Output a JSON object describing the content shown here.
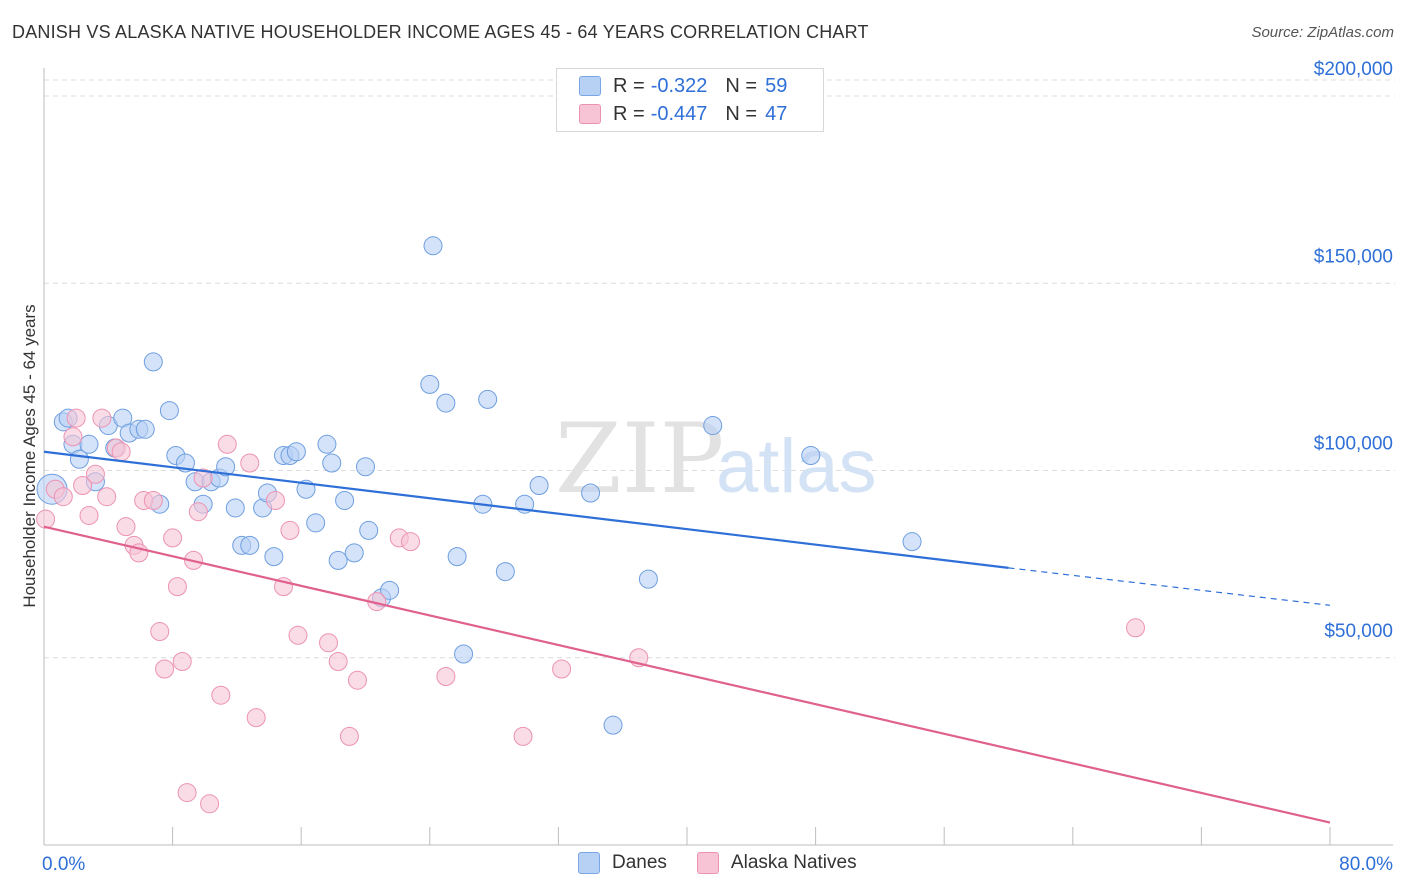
{
  "title": "DANISH VS ALASKA NATIVE HOUSEHOLDER INCOME AGES 45 - 64 YEARS CORRELATION CHART",
  "source": "Source: ZipAtlas.com",
  "watermark": {
    "zip": "ZIP",
    "atlas": "atlas"
  },
  "legend": {
    "rows": [
      {
        "r_label": "R =",
        "r_value": "-0.322",
        "n_label": "N =",
        "n_value": "59",
        "color": "#b7d1f5",
        "border": "#7aa6e6"
      },
      {
        "r_label": "R =",
        "r_value": "-0.447",
        "n_label": "N =",
        "n_value": "47",
        "color": "#f7c4d5",
        "border": "#ec93b3"
      }
    ],
    "bottom": [
      {
        "label": "Danes",
        "color": "#b7d1f5",
        "border": "#7aa6e6"
      },
      {
        "label": "Alaska Natives",
        "color": "#f7c4d5",
        "border": "#ec93b3"
      }
    ]
  },
  "chart_data": {
    "type": "scatter",
    "title": "DANISH VS ALASKA NATIVE HOUSEHOLDER INCOME AGES 45 - 64 YEARS CORRELATION CHART",
    "xlabel": "",
    "ylabel": "Householder Income Ages 45 - 64 years",
    "xlim": [
      0,
      80
    ],
    "ylim": [
      0,
      200000
    ],
    "x_tick_labels": [
      "0.0%",
      "80.0%"
    ],
    "y_ticks": [
      50000,
      100000,
      150000,
      200000
    ],
    "y_tick_labels": [
      "$50,000",
      "$100,000",
      "$150,000",
      "$200,000"
    ],
    "grid": "horizontal dashed",
    "legend_position": "top-center",
    "series": [
      {
        "name": "Danes",
        "color": "#6f9fe0",
        "fill": "#b7d1f5",
        "trend": {
          "x0": 0,
          "y0": 105000,
          "x1": 60,
          "y1": 74000,
          "dashed_to_x": 80,
          "dashed_to_y": 64000,
          "color": "#2e6fd8"
        },
        "points": [
          [
            0.5,
            95000
          ],
          [
            1.2,
            113000
          ],
          [
            1.5,
            114000
          ],
          [
            1.8,
            107000
          ],
          [
            2.2,
            103000
          ],
          [
            2.8,
            107000
          ],
          [
            3.2,
            97000
          ],
          [
            4.0,
            112000
          ],
          [
            4.4,
            106000
          ],
          [
            4.9,
            114000
          ],
          [
            5.3,
            110000
          ],
          [
            5.9,
            111000
          ],
          [
            6.3,
            111000
          ],
          [
            6.8,
            129000
          ],
          [
            7.2,
            91000
          ],
          [
            7.8,
            116000
          ],
          [
            8.2,
            104000
          ],
          [
            8.8,
            102000
          ],
          [
            9.4,
            97000
          ],
          [
            9.9,
            91000
          ],
          [
            10.4,
            97000
          ],
          [
            10.9,
            98000
          ],
          [
            11.3,
            101000
          ],
          [
            11.9,
            90000
          ],
          [
            12.3,
            80000
          ],
          [
            12.8,
            80000
          ],
          [
            13.6,
            90000
          ],
          [
            13.9,
            94000
          ],
          [
            14.3,
            77000
          ],
          [
            14.9,
            104000
          ],
          [
            15.3,
            104000
          ],
          [
            15.7,
            105000
          ],
          [
            16.3,
            95000
          ],
          [
            16.9,
            86000
          ],
          [
            17.6,
            107000
          ],
          [
            17.9,
            102000
          ],
          [
            18.3,
            76000
          ],
          [
            18.7,
            92000
          ],
          [
            19.3,
            78000
          ],
          [
            20.0,
            101000
          ],
          [
            20.2,
            84000
          ],
          [
            21.0,
            66000
          ],
          [
            21.5,
            68000
          ],
          [
            24.0,
            123000
          ],
          [
            24.2,
            160000
          ],
          [
            25.0,
            118000
          ],
          [
            25.7,
            77000
          ],
          [
            26.1,
            51000
          ],
          [
            27.3,
            91000
          ],
          [
            27.6,
            119000
          ],
          [
            28.7,
            73000
          ],
          [
            29.9,
            91000
          ],
          [
            30.8,
            96000
          ],
          [
            34.0,
            94000
          ],
          [
            35.4,
            32000
          ],
          [
            37.6,
            71000
          ],
          [
            41.6,
            112000
          ],
          [
            47.7,
            104000
          ],
          [
            54.0,
            81000
          ]
        ]
      },
      {
        "name": "Alaska Natives",
        "color": "#ec93b3",
        "fill": "#f7c4d5",
        "trend": {
          "x0": 0,
          "y0": 85000,
          "x1": 80,
          "y1": 6000,
          "color": "#e0608e"
        },
        "points": [
          [
            0.1,
            87000
          ],
          [
            0.7,
            95000
          ],
          [
            1.2,
            93000
          ],
          [
            1.8,
            109000
          ],
          [
            2.0,
            114000
          ],
          [
            2.4,
            96000
          ],
          [
            2.8,
            88000
          ],
          [
            3.2,
            99000
          ],
          [
            3.6,
            114000
          ],
          [
            3.9,
            93000
          ],
          [
            4.5,
            106000
          ],
          [
            4.8,
            105000
          ],
          [
            5.1,
            85000
          ],
          [
            5.6,
            80000
          ],
          [
            5.9,
            78000
          ],
          [
            6.2,
            92000
          ],
          [
            6.8,
            92000
          ],
          [
            7.2,
            57000
          ],
          [
            7.5,
            47000
          ],
          [
            8.0,
            82000
          ],
          [
            8.3,
            69000
          ],
          [
            8.6,
            49000
          ],
          [
            8.9,
            14000
          ],
          [
            9.3,
            76000
          ],
          [
            9.6,
            89000
          ],
          [
            9.9,
            98000
          ],
          [
            10.3,
            11000
          ],
          [
            11.0,
            40000
          ],
          [
            11.4,
            107000
          ],
          [
            12.8,
            102000
          ],
          [
            13.2,
            34000
          ],
          [
            14.4,
            92000
          ],
          [
            14.9,
            69000
          ],
          [
            15.3,
            84000
          ],
          [
            15.8,
            56000
          ],
          [
            17.7,
            54000
          ],
          [
            18.3,
            49000
          ],
          [
            19.0,
            29000
          ],
          [
            19.5,
            44000
          ],
          [
            20.7,
            65000
          ],
          [
            22.1,
            82000
          ],
          [
            22.8,
            81000
          ],
          [
            25.0,
            45000
          ],
          [
            29.8,
            29000
          ],
          [
            32.2,
            47000
          ],
          [
            37.0,
            50000
          ],
          [
            67.9,
            58000
          ]
        ]
      }
    ]
  }
}
